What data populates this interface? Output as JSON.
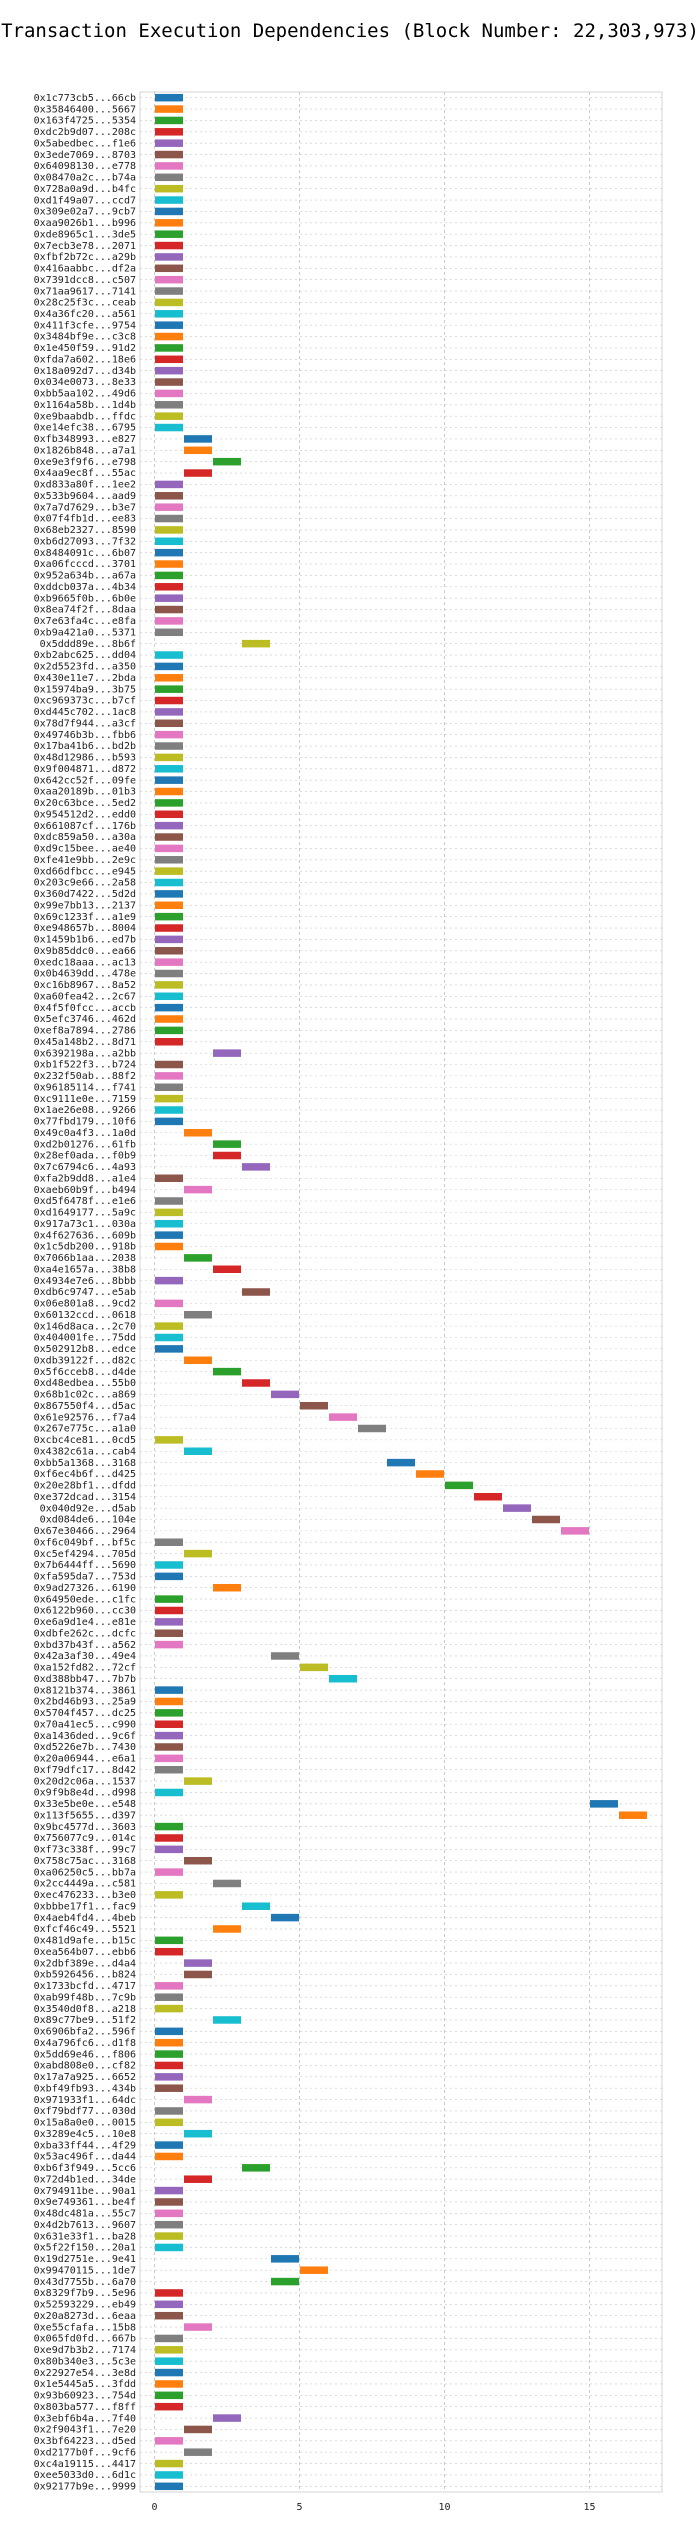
{
  "chart_data": {
    "type": "gantt",
    "title": "Transaction Execution Dependencies (Block Number: 22,303,973)",
    "xlabel": "",
    "ylabel": "",
    "xlim": [
      -0.5,
      17.5
    ],
    "x_ticks": [
      0,
      5,
      10,
      15
    ],
    "grid": true,
    "palette": [
      "#1f77b4",
      "#ff7f0e",
      "#2ca02c",
      "#d62728",
      "#9467bd",
      "#8c564b",
      "#e377c2",
      "#7f7f7f",
      "#bcbd22",
      "#17becf"
    ],
    "transactions": [
      {
        "id": "0x1c773cb5...66cb",
        "start": 0
      },
      {
        "id": "0x35846400...5667",
        "start": 0
      },
      {
        "id": "0x163f4725...5354",
        "start": 0
      },
      {
        "id": "0xdc2b9d07...208c",
        "start": 0
      },
      {
        "id": "0x5abedbec...f1e6",
        "start": 0
      },
      {
        "id": "0x3ede7069...8703",
        "start": 0
      },
      {
        "id": "0x64098130...e778",
        "start": 0
      },
      {
        "id": "0x08470a2c...b74a",
        "start": 0
      },
      {
        "id": "0x728a0a9d...b4fc",
        "start": 0
      },
      {
        "id": "0xd1f49a07...ccd7",
        "start": 0
      },
      {
        "id": "0x309e02a7...9cb7",
        "start": 0
      },
      {
        "id": "0xaa9026b1...b996",
        "start": 0
      },
      {
        "id": "0xde8965c1...3de5",
        "start": 0
      },
      {
        "id": "0x7ecb3e78...2071",
        "start": 0
      },
      {
        "id": "0xfbf2b72c...a29b",
        "start": 0
      },
      {
        "id": "0x416aabbc...df2a",
        "start": 0
      },
      {
        "id": "0x7391dcc8...c507",
        "start": 0
      },
      {
        "id": "0x71aa9617...7141",
        "start": 0
      },
      {
        "id": "0x28c25f3c...ceab",
        "start": 0
      },
      {
        "id": "0x4a36fc20...a561",
        "start": 0
      },
      {
        "id": "0x411f3cfe...9754",
        "start": 0
      },
      {
        "id": "0x3484bf9e...c3c8",
        "start": 0
      },
      {
        "id": "0x1e450f59...91d2",
        "start": 0
      },
      {
        "id": "0xfda7a602...18e6",
        "start": 0
      },
      {
        "id": "0x18a092d7...d34b",
        "start": 0
      },
      {
        "id": "0x034e0073...8e33",
        "start": 0
      },
      {
        "id": "0xbb5aa102...49d6",
        "start": 0
      },
      {
        "id": "0x1164a58b...1d4b",
        "start": 0
      },
      {
        "id": "0xe9baabdb...ffdc",
        "start": 0
      },
      {
        "id": "0xe14efc38...6795",
        "start": 0
      },
      {
        "id": "0xfb348993...e827",
        "start": 1
      },
      {
        "id": "0x1826b848...a7a1",
        "start": 1
      },
      {
        "id": "0xe9e3f9f6...e798",
        "start": 2
      },
      {
        "id": "0x4aa9ec8f...55ac",
        "start": 1
      },
      {
        "id": "0xd833a80f...1ee2",
        "start": 0
      },
      {
        "id": "0x533b9604...aad9",
        "start": 0
      },
      {
        "id": "0x7a7d7629...b3e7",
        "start": 0
      },
      {
        "id": "0x07f4fb1d...ee83",
        "start": 0
      },
      {
        "id": "0x68eb2327...8590",
        "start": 0
      },
      {
        "id": "0xb6d27093...7f32",
        "start": 0
      },
      {
        "id": "0x8484091c...6b07",
        "start": 0
      },
      {
        "id": "0xa06fcccd...3701",
        "start": 0
      },
      {
        "id": "0x952a634b...a67a",
        "start": 0
      },
      {
        "id": "0xddcb037a...4b34",
        "start": 0
      },
      {
        "id": "0xb9665f0b...6b0e",
        "start": 0
      },
      {
        "id": "0x8ea74f2f...8daa",
        "start": 0
      },
      {
        "id": "0x7e63fa4c...e8fa",
        "start": 0
      },
      {
        "id": "0xb9a421a0...5371",
        "start": 0
      },
      {
        "id": "0x5ddd89e...8b6f",
        "start": 3
      },
      {
        "id": "0xb2abc625...dd04",
        "start": 0
      },
      {
        "id": "0x2d5523fd...a350",
        "start": 0
      },
      {
        "id": "0x430e11e7...2bda",
        "start": 0
      },
      {
        "id": "0x15974ba9...3b75",
        "start": 0
      },
      {
        "id": "0xc969373c...b7cf",
        "start": 0
      },
      {
        "id": "0xd445c702...1ac8",
        "start": 0
      },
      {
        "id": "0x78d7f944...a3cf",
        "start": 0
      },
      {
        "id": "0x49746b3b...fbb6",
        "start": 0
      },
      {
        "id": "0x17ba41b6...bd2b",
        "start": 0
      },
      {
        "id": "0x48d12986...b593",
        "start": 0
      },
      {
        "id": "0x9f004871...d872",
        "start": 0
      },
      {
        "id": "0x642cc52f...09fe",
        "start": 0
      },
      {
        "id": "0xaa20189b...01b3",
        "start": 0
      },
      {
        "id": "0x20c63bce...5ed2",
        "start": 0
      },
      {
        "id": "0x954512d2...edd0",
        "start": 0
      },
      {
        "id": "0x661087cf...176b",
        "start": 0
      },
      {
        "id": "0xdc859a50...a30a",
        "start": 0
      },
      {
        "id": "0xd9c15bee...ae40",
        "start": 0
      },
      {
        "id": "0xfe41e9bb...2e9c",
        "start": 0
      },
      {
        "id": "0xd66dfbcc...e945",
        "start": 0
      },
      {
        "id": "0x203c9e66...2a58",
        "start": 0
      },
      {
        "id": "0x360d7422...5d2d",
        "start": 0
      },
      {
        "id": "0x99e7bb13...2137",
        "start": 0
      },
      {
        "id": "0x69c1233f...a1e9",
        "start": 0
      },
      {
        "id": "0xe948657b...8004",
        "start": 0
      },
      {
        "id": "0x1459b1b6...ed7b",
        "start": 0
      },
      {
        "id": "0x9b85ddc0...ea66",
        "start": 0
      },
      {
        "id": "0xedc18aaa...ac13",
        "start": 0
      },
      {
        "id": "0x0b4639dd...478e",
        "start": 0
      },
      {
        "id": "0xc16b8967...8a52",
        "start": 0
      },
      {
        "id": "0xa60fea42...2c67",
        "start": 0
      },
      {
        "id": "0x4f5f0fcc...accb",
        "start": 0
      },
      {
        "id": "0x5efc3746...462d",
        "start": 0
      },
      {
        "id": "0xef8a7894...2786",
        "start": 0
      },
      {
        "id": "0x45a148b2...8d71",
        "start": 0
      },
      {
        "id": "0x6392198a...a2bb",
        "start": 2
      },
      {
        "id": "0xb1f522f3...b724",
        "start": 0
      },
      {
        "id": "0x232f50ab...88f2",
        "start": 0
      },
      {
        "id": "0x96185114...f741",
        "start": 0
      },
      {
        "id": "0xc9111e0e...7159",
        "start": 0
      },
      {
        "id": "0x1ae26e08...9266",
        "start": 0
      },
      {
        "id": "0x77fbd179...10f6",
        "start": 0
      },
      {
        "id": "0x49c0a4f3...1a0d",
        "start": 1
      },
      {
        "id": "0xd2b01276...61fb",
        "start": 2
      },
      {
        "id": "0x28ef0ada...f0b9",
        "start": 2
      },
      {
        "id": "0x7c6794c6...4a93",
        "start": 3
      },
      {
        "id": "0xfa2b9dd8...a1e4",
        "start": 0
      },
      {
        "id": "0xaeb60b9f...b494",
        "start": 1
      },
      {
        "id": "0xd5f6478f...e1e6",
        "start": 0
      },
      {
        "id": "0xd1649177...5a9c",
        "start": 0
      },
      {
        "id": "0x917a73c1...030a",
        "start": 0
      },
      {
        "id": "0x4f627636...609b",
        "start": 0
      },
      {
        "id": "0x1c5db200...918b",
        "start": 0
      },
      {
        "id": "0x7066b1aa...2038",
        "start": 1
      },
      {
        "id": "0xa4e1657a...38b8",
        "start": 2
      },
      {
        "id": "0x4934e7e6...8bbb",
        "start": 0
      },
      {
        "id": "0xdb6c9747...e5ab",
        "start": 3
      },
      {
        "id": "0x06e801a8...9cd2",
        "start": 0
      },
      {
        "id": "0x60132ccd...0618",
        "start": 1
      },
      {
        "id": "0x146d8aca...2c70",
        "start": 0
      },
      {
        "id": "0x404001fe...75dd",
        "start": 0
      },
      {
        "id": "0x502912b8...edce",
        "start": 0
      },
      {
        "id": "0xdb39122f...d82c",
        "start": 1
      },
      {
        "id": "0x5f6cceb8...d4de",
        "start": 2
      },
      {
        "id": "0xd48edbea...55b0",
        "start": 3
      },
      {
        "id": "0x68b1c02c...a869",
        "start": 4
      },
      {
        "id": "0x867550f4...d5ac",
        "start": 5
      },
      {
        "id": "0x61e92576...f7a4",
        "start": 6
      },
      {
        "id": "0x267e775c...a1a0",
        "start": 7
      },
      {
        "id": "0xcbc4ce81...0cd5",
        "start": 0
      },
      {
        "id": "0x4382c61a...cab4",
        "start": 1
      },
      {
        "id": "0xbb5a1368...3168",
        "start": 8
      },
      {
        "id": "0xf6ec4b6f...d425",
        "start": 9
      },
      {
        "id": "0x20e28bf1...dfdd",
        "start": 10
      },
      {
        "id": "0xe372dcad...3154",
        "start": 11
      },
      {
        "id": "0x040d92e...d5ab",
        "start": 12
      },
      {
        "id": "0xd084de6...104e",
        "start": 13
      },
      {
        "id": "0x67e30466...2964",
        "start": 14
      },
      {
        "id": "0xf6c049bf...bf5c",
        "start": 0
      },
      {
        "id": "0xc5ef4294...705d",
        "start": 1
      },
      {
        "id": "0x7b6444ff...5690",
        "start": 0
      },
      {
        "id": "0xfa595da7...753d",
        "start": 0
      },
      {
        "id": "0x9ad27326...6190",
        "start": 2
      },
      {
        "id": "0x64950ede...c1fc",
        "start": 0
      },
      {
        "id": "0x6122b960...cc30",
        "start": 0
      },
      {
        "id": "0xe6a9d1e4...e81e",
        "start": 0
      },
      {
        "id": "0xdbfe262c...dcfc",
        "start": 0
      },
      {
        "id": "0xbd37b43f...a562",
        "start": 0
      },
      {
        "id": "0x42a3af30...49e4",
        "start": 4
      },
      {
        "id": "0xa152fd82...72cf",
        "start": 5
      },
      {
        "id": "0xd388bb47...7b7b",
        "start": 6
      },
      {
        "id": "0x8121b374...3861",
        "start": 0
      },
      {
        "id": "0x2bd46b93...25a9",
        "start": 0
      },
      {
        "id": "0x5704f457...dc25",
        "start": 0
      },
      {
        "id": "0x70a41ec5...c990",
        "start": 0
      },
      {
        "id": "0xa1436ded...9c6f",
        "start": 0
      },
      {
        "id": "0xd5226e7b...7430",
        "start": 0
      },
      {
        "id": "0x20a06944...e6a1",
        "start": 0
      },
      {
        "id": "0xf79dfc17...8d42",
        "start": 0
      },
      {
        "id": "0x20d2c06a...1537",
        "start": 1
      },
      {
        "id": "0x9f9b8e4d...d998",
        "start": 0
      },
      {
        "id": "0x33e5be0e...e548",
        "start": 15
      },
      {
        "id": "0x113f5655...d397",
        "start": 16
      },
      {
        "id": "0x9bc4577d...3603",
        "start": 0
      },
      {
        "id": "0x756077c9...014c",
        "start": 0
      },
      {
        "id": "0xf73c338f...99c7",
        "start": 0
      },
      {
        "id": "0x758c75ac...3168",
        "start": 1
      },
      {
        "id": "0xa06250c5...bb7a",
        "start": 0
      },
      {
        "id": "0x2cc4449a...c581",
        "start": 2
      },
      {
        "id": "0xec476233...b3e0",
        "start": 0
      },
      {
        "id": "0xbbbe17f1...fac9",
        "start": 3
      },
      {
        "id": "0x4aeb4fd4...4beb",
        "start": 4
      },
      {
        "id": "0xfcf46c49...5521",
        "start": 2
      },
      {
        "id": "0x481d9afe...b15c",
        "start": 0
      },
      {
        "id": "0xea564b07...ebb6",
        "start": 0
      },
      {
        "id": "0x2dbf389e...d4a4",
        "start": 1
      },
      {
        "id": "0xb5926456...b824",
        "start": 1
      },
      {
        "id": "0x1733bcfd...4717",
        "start": 0
      },
      {
        "id": "0xab99f48b...7c9b",
        "start": 0
      },
      {
        "id": "0x3540d0f8...a218",
        "start": 0
      },
      {
        "id": "0x89c77be9...51f2",
        "start": 2
      },
      {
        "id": "0x6906bfa2...596f",
        "start": 0
      },
      {
        "id": "0x4a796fc6...d1f8",
        "start": 0
      },
      {
        "id": "0x5dd69e46...f806",
        "start": 0
      },
      {
        "id": "0xabd808e0...cf82",
        "start": 0
      },
      {
        "id": "0x17a7a925...6652",
        "start": 0
      },
      {
        "id": "0xbf49fb93...434b",
        "start": 0
      },
      {
        "id": "0x971933f1...64dc",
        "start": 1
      },
      {
        "id": "0xf79bdf77...030d",
        "start": 0
      },
      {
        "id": "0x15a8a0e0...0015",
        "start": 0
      },
      {
        "id": "0x3289e4c5...10e8",
        "start": 1
      },
      {
        "id": "0xba33ff44...4f29",
        "start": 0
      },
      {
        "id": "0x53ac496f...da44",
        "start": 0
      },
      {
        "id": "0xb6f3f949...5cc6",
        "start": 3
      },
      {
        "id": "0x72d4b1ed...34de",
        "start": 1
      },
      {
        "id": "0x794911be...90a1",
        "start": 0
      },
      {
        "id": "0x9e749361...be4f",
        "start": 0
      },
      {
        "id": "0x48dc481a...55c7",
        "start": 0
      },
      {
        "id": "0x4d2b7613...9607",
        "start": 0
      },
      {
        "id": "0x631e33f1...ba28",
        "start": 0
      },
      {
        "id": "0x5f22f150...20a1",
        "start": 0
      },
      {
        "id": "0x19d2751e...9e41",
        "start": 4
      },
      {
        "id": "0x99470115...1de7",
        "start": 5
      },
      {
        "id": "0x43d7755b...6a70",
        "start": 4
      },
      {
        "id": "0x8329f7b9...5e96",
        "start": 0
      },
      {
        "id": "0x52593229...eb49",
        "start": 0
      },
      {
        "id": "0x20a8273d...6eaa",
        "start": 0
      },
      {
        "id": "0xe55cfafa...15b8",
        "start": 1
      },
      {
        "id": "0x065fd0fd...667b",
        "start": 0
      },
      {
        "id": "0xe9d7b3b2...7174",
        "start": 0
      },
      {
        "id": "0x80b340e3...5c3e",
        "start": 0
      },
      {
        "id": "0x22927e54...3e8d",
        "start": 0
      },
      {
        "id": "0x1e5445a5...3fdd",
        "start": 0
      },
      {
        "id": "0x93b60923...754d",
        "start": 0
      },
      {
        "id": "0x803ba577...f8ff",
        "start": 0
      },
      {
        "id": "0x3ebf6b4a...7f40",
        "start": 2
      },
      {
        "id": "0x2f9043f1...7e20",
        "start": 1
      },
      {
        "id": "0x3bf64223...d5ed",
        "start": 0
      },
      {
        "id": "0xd2177b0f...9cf6",
        "start": 1
      },
      {
        "id": "0xc4a19115...4417",
        "start": 0
      },
      {
        "id": "0xee5033d0...6d1c",
        "start": 0
      },
      {
        "id": "0x92177b9e...9999",
        "start": 0
      }
    ]
  }
}
